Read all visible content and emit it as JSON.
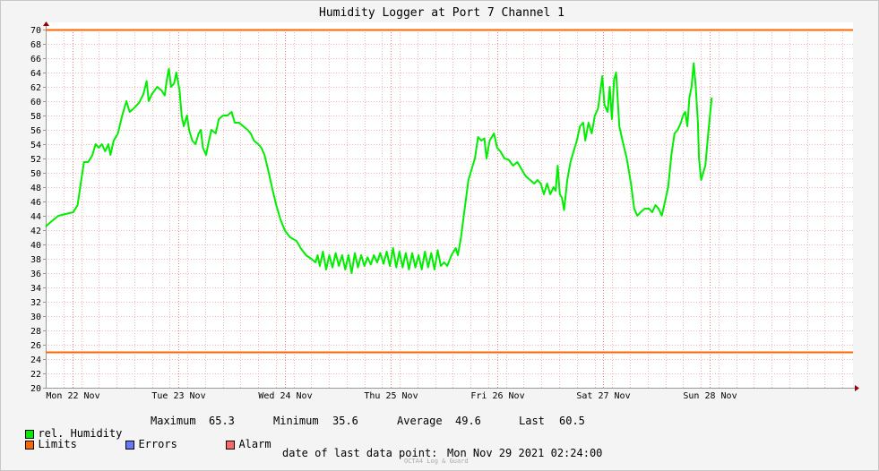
{
  "chart_data": {
    "type": "line",
    "title": "Humidity Logger at Port 7 Channel 1",
    "ylim": [
      20,
      70
    ],
    "y_ticks": [
      20,
      22,
      24,
      26,
      28,
      30,
      32,
      34,
      36,
      38,
      40,
      42,
      44,
      46,
      48,
      50,
      52,
      54,
      56,
      58,
      60,
      62,
      64,
      66,
      68,
      70
    ],
    "x_range_days": [
      0,
      7.6
    ],
    "x_tick_labels": [
      "Mon 22 Nov",
      "Tue 23 Nov",
      "Wed 24 Nov",
      "Thu 25 Nov",
      "Fri 26 Nov",
      "Sat 27 Nov",
      "Sun 28 Nov"
    ],
    "x_tick_positions_days": [
      0.25,
      1.25,
      2.25,
      3.25,
      4.25,
      5.25,
      6.25
    ],
    "grid": true,
    "limits": [
      25,
      70
    ],
    "series": [
      {
        "name": "rel. Humidity",
        "color": "#00ee00",
        "points": [
          [
            0.0,
            42.5
          ],
          [
            0.06,
            43.3
          ],
          [
            0.12,
            44.0
          ],
          [
            0.2,
            44.3
          ],
          [
            0.26,
            44.5
          ],
          [
            0.3,
            45.5
          ],
          [
            0.33,
            48.5
          ],
          [
            0.36,
            51.5
          ],
          [
            0.4,
            51.5
          ],
          [
            0.44,
            52.5
          ],
          [
            0.47,
            54.0
          ],
          [
            0.5,
            53.5
          ],
          [
            0.53,
            54.0
          ],
          [
            0.56,
            53.0
          ],
          [
            0.59,
            54.0
          ],
          [
            0.61,
            52.5
          ],
          [
            0.64,
            54.5
          ],
          [
            0.68,
            55.5
          ],
          [
            0.72,
            58.0
          ],
          [
            0.76,
            60.0
          ],
          [
            0.79,
            58.5
          ],
          [
            0.83,
            59.0
          ],
          [
            0.88,
            59.8
          ],
          [
            0.92,
            61.0
          ],
          [
            0.95,
            62.8
          ],
          [
            0.97,
            60.0
          ],
          [
            1.0,
            61.0
          ],
          [
            1.05,
            62.0
          ],
          [
            1.09,
            61.5
          ],
          [
            1.12,
            60.8
          ],
          [
            1.14,
            63.0
          ],
          [
            1.16,
            64.5
          ],
          [
            1.18,
            62.0
          ],
          [
            1.21,
            62.5
          ],
          [
            1.23,
            64.0
          ],
          [
            1.26,
            61.5
          ],
          [
            1.28,
            58.0
          ],
          [
            1.3,
            56.5
          ],
          [
            1.33,
            58.0
          ],
          [
            1.35,
            56.0
          ],
          [
            1.38,
            54.5
          ],
          [
            1.41,
            54.0
          ],
          [
            1.44,
            55.5
          ],
          [
            1.46,
            56.0
          ],
          [
            1.48,
            53.5
          ],
          [
            1.51,
            52.5
          ],
          [
            1.53,
            54.0
          ],
          [
            1.56,
            56.0
          ],
          [
            1.6,
            55.5
          ],
          [
            1.63,
            57.5
          ],
          [
            1.67,
            58.0
          ],
          [
            1.71,
            58.0
          ],
          [
            1.75,
            58.5
          ],
          [
            1.78,
            57.0
          ],
          [
            1.82,
            57.0
          ],
          [
            1.86,
            56.5
          ],
          [
            1.9,
            56.0
          ],
          [
            1.93,
            55.5
          ],
          [
            1.96,
            54.5
          ],
          [
            2.0,
            54.0
          ],
          [
            2.03,
            53.5
          ],
          [
            2.06,
            52.5
          ],
          [
            2.1,
            50.0
          ],
          [
            2.13,
            48.0
          ],
          [
            2.17,
            45.5
          ],
          [
            2.21,
            43.5
          ],
          [
            2.25,
            42.0
          ],
          [
            2.3,
            41.0
          ],
          [
            2.36,
            40.5
          ],
          [
            2.4,
            39.5
          ],
          [
            2.45,
            38.5
          ],
          [
            2.5,
            38.0
          ],
          [
            2.54,
            37.5
          ],
          [
            2.56,
            38.5
          ],
          [
            2.58,
            37.0
          ],
          [
            2.61,
            39.0
          ],
          [
            2.64,
            36.5
          ],
          [
            2.67,
            38.5
          ],
          [
            2.7,
            36.8
          ],
          [
            2.73,
            38.8
          ],
          [
            2.76,
            37.0
          ],
          [
            2.79,
            38.5
          ],
          [
            2.82,
            36.5
          ],
          [
            2.85,
            38.5
          ],
          [
            2.88,
            36.0
          ],
          [
            2.91,
            38.8
          ],
          [
            2.94,
            36.8
          ],
          [
            2.97,
            38.5
          ],
          [
            3.0,
            37.0
          ],
          [
            3.03,
            38.2
          ],
          [
            3.06,
            37.2
          ],
          [
            3.09,
            38.5
          ],
          [
            3.12,
            37.5
          ],
          [
            3.15,
            38.8
          ],
          [
            3.18,
            37.3
          ],
          [
            3.21,
            39.0
          ],
          [
            3.24,
            37.0
          ],
          [
            3.27,
            39.5
          ],
          [
            3.3,
            36.8
          ],
          [
            3.33,
            39.0
          ],
          [
            3.36,
            36.8
          ],
          [
            3.39,
            38.8
          ],
          [
            3.42,
            36.5
          ],
          [
            3.45,
            38.8
          ],
          [
            3.48,
            36.8
          ],
          [
            3.51,
            38.5
          ],
          [
            3.54,
            36.5
          ],
          [
            3.57,
            39.0
          ],
          [
            3.6,
            36.8
          ],
          [
            3.63,
            38.8
          ],
          [
            3.66,
            36.5
          ],
          [
            3.69,
            39.2
          ],
          [
            3.72,
            37.0
          ],
          [
            3.75,
            37.5
          ],
          [
            3.78,
            37.0
          ],
          [
            3.82,
            38.5
          ],
          [
            3.86,
            39.5
          ],
          [
            3.88,
            38.5
          ],
          [
            3.91,
            41.0
          ],
          [
            3.94,
            44.5
          ],
          [
            3.98,
            49.0
          ],
          [
            4.01,
            50.5
          ],
          [
            4.04,
            52.0
          ],
          [
            4.07,
            55.0
          ],
          [
            4.1,
            54.5
          ],
          [
            4.13,
            54.8
          ],
          [
            4.15,
            52.0
          ],
          [
            4.18,
            54.5
          ],
          [
            4.22,
            55.5
          ],
          [
            4.25,
            53.5
          ],
          [
            4.28,
            53.0
          ],
          [
            4.32,
            52.0
          ],
          [
            4.36,
            51.8
          ],
          [
            4.4,
            51.0
          ],
          [
            4.44,
            51.5
          ],
          [
            4.48,
            50.5
          ],
          [
            4.52,
            49.5
          ],
          [
            4.56,
            49.0
          ],
          [
            4.6,
            48.5
          ],
          [
            4.63,
            49.0
          ],
          [
            4.66,
            48.5
          ],
          [
            4.69,
            47.0
          ],
          [
            4.72,
            48.5
          ],
          [
            4.75,
            47.0
          ],
          [
            4.78,
            48.0
          ],
          [
            4.8,
            47.5
          ],
          [
            4.82,
            51.0
          ],
          [
            4.84,
            47.0
          ],
          [
            4.86,
            46.5
          ],
          [
            4.88,
            44.8
          ],
          [
            4.91,
            49.0
          ],
          [
            4.94,
            51.5
          ],
          [
            4.97,
            53.0
          ],
          [
            5.0,
            54.5
          ],
          [
            5.03,
            56.5
          ],
          [
            5.06,
            57.0
          ],
          [
            5.08,
            54.5
          ],
          [
            5.11,
            57.0
          ],
          [
            5.14,
            55.5
          ],
          [
            5.17,
            58.0
          ],
          [
            5.2,
            59.0
          ],
          [
            5.24,
            63.5
          ],
          [
            5.26,
            59.5
          ],
          [
            5.29,
            58.5
          ],
          [
            5.31,
            62.0
          ],
          [
            5.33,
            57.5
          ],
          [
            5.35,
            63.0
          ],
          [
            5.37,
            64.0
          ],
          [
            5.4,
            56.5
          ],
          [
            5.43,
            54.5
          ],
          [
            5.47,
            52.0
          ],
          [
            5.51,
            48.5
          ],
          [
            5.54,
            45.0
          ],
          [
            5.57,
            44.0
          ],
          [
            5.6,
            44.5
          ],
          [
            5.64,
            45.0
          ],
          [
            5.68,
            45.0
          ],
          [
            5.71,
            44.5
          ],
          [
            5.74,
            45.5
          ],
          [
            5.77,
            45.0
          ],
          [
            5.8,
            44.0
          ],
          [
            5.83,
            46.0
          ],
          [
            5.86,
            48.0
          ],
          [
            5.89,
            52.5
          ],
          [
            5.92,
            55.5
          ],
          [
            5.95,
            56.0
          ],
          [
            5.98,
            57.0
          ],
          [
            6.0,
            58.0
          ],
          [
            6.02,
            58.5
          ],
          [
            6.04,
            56.5
          ],
          [
            6.06,
            60.5
          ],
          [
            6.08,
            62.0
          ],
          [
            6.1,
            65.3
          ],
          [
            6.12,
            62.0
          ],
          [
            6.14,
            57.0
          ],
          [
            6.15,
            52.0
          ],
          [
            6.17,
            49.0
          ],
          [
            6.19,
            50.0
          ],
          [
            6.21,
            51.0
          ],
          [
            6.24,
            56.0
          ],
          [
            6.27,
            60.5
          ]
        ]
      }
    ]
  },
  "legend": {
    "humidity": {
      "label": "rel. Humidity",
      "color": "#00ee00"
    },
    "limits": {
      "label": "Limits",
      "color": "#ff6600"
    },
    "errors": {
      "label": "Errors",
      "color": "#6677ff"
    },
    "alarm": {
      "label": "Alarm",
      "color": "#ff6666"
    },
    "stats": {
      "maximum_label": "Maximum",
      "maximum_value": "65.3",
      "minimum_label": "Minimum",
      "minimum_value": "35.6",
      "average_label": "Average",
      "average_value": "49.6",
      "last_label": "Last",
      "last_value": "60.5"
    }
  },
  "footer": {
    "label": "date of last data point:",
    "value": "Mon Nov 29 2021 02:24:00",
    "watermark": "OCTA4 Log & Guard"
  }
}
